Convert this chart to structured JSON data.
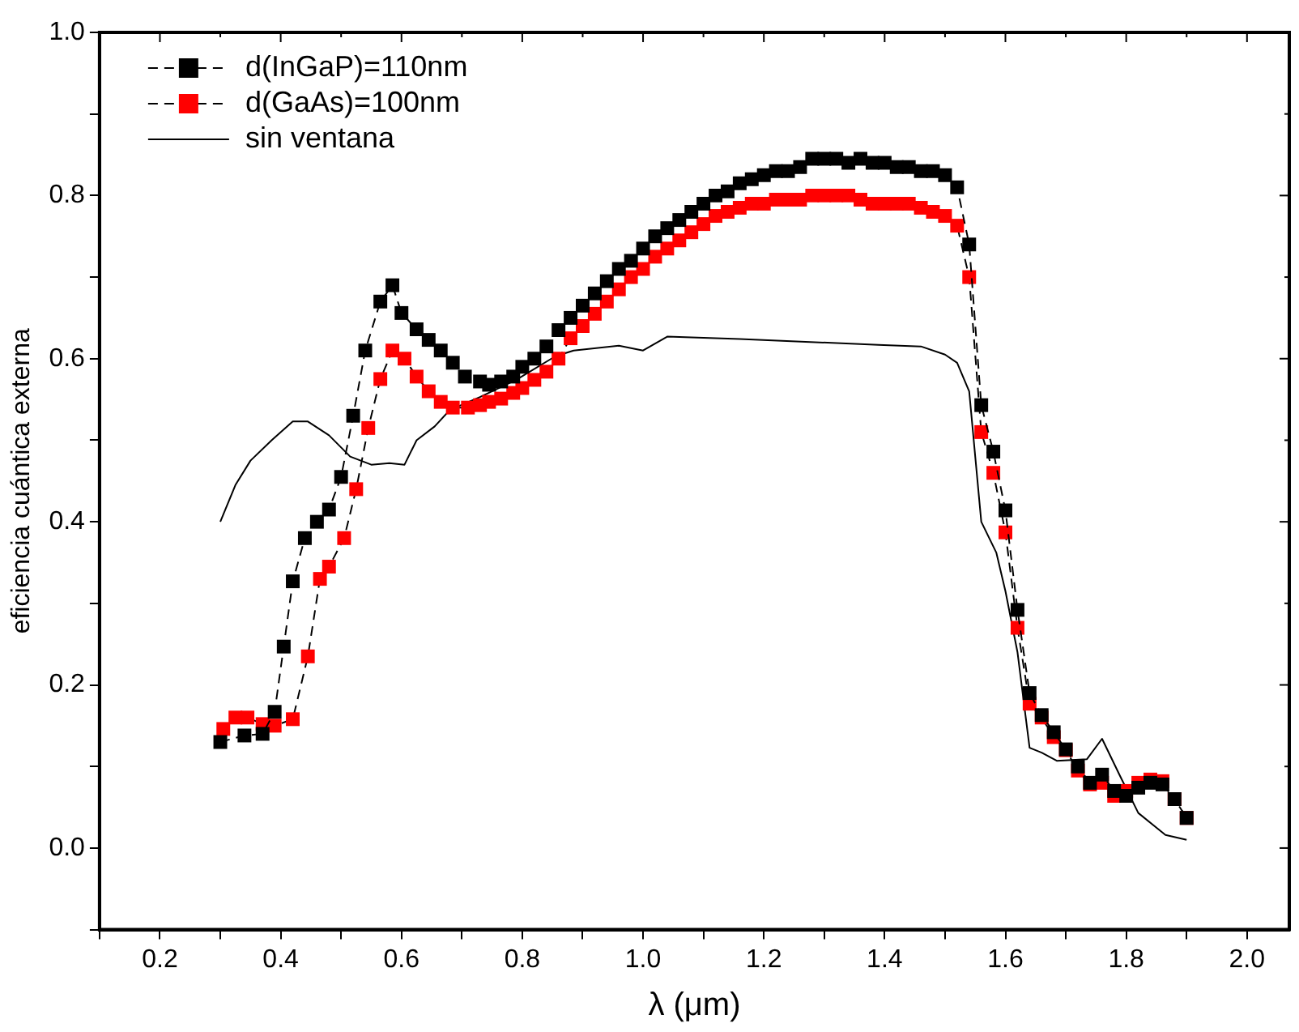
{
  "chart_data": {
    "type": "line",
    "xlabel": "λ (μm)",
    "ylabel": "eficiencia cuántica externa",
    "xlim": [
      0.1,
      2.07
    ],
    "ylim": [
      -0.1,
      1.0
    ],
    "xticks": [
      {
        "value": 0.1,
        "label": null
      },
      {
        "value": 0.2,
        "label": "0.2"
      },
      {
        "value": 0.3,
        "label": null
      },
      {
        "value": 0.4,
        "label": "0.4"
      },
      {
        "value": 0.5,
        "label": null
      },
      {
        "value": 0.6,
        "label": "0.6"
      },
      {
        "value": 0.7,
        "label": null
      },
      {
        "value": 0.8,
        "label": "0.8"
      },
      {
        "value": 0.9,
        "label": null
      },
      {
        "value": 1.0,
        "label": "1.0"
      },
      {
        "value": 1.1,
        "label": null
      },
      {
        "value": 1.2,
        "label": "1.2"
      },
      {
        "value": 1.3,
        "label": null
      },
      {
        "value": 1.4,
        "label": "1.4"
      },
      {
        "value": 1.5,
        "label": null
      },
      {
        "value": 1.6,
        "label": "1.6"
      },
      {
        "value": 1.7,
        "label": null
      },
      {
        "value": 1.8,
        "label": "1.8"
      },
      {
        "value": 1.9,
        "label": null
      },
      {
        "value": 2.0,
        "label": "2.0"
      }
    ],
    "yticks": [
      {
        "value": -0.1,
        "label": null
      },
      {
        "value": 0.0,
        "label": "0.0"
      },
      {
        "value": 0.1,
        "label": null
      },
      {
        "value": 0.2,
        "label": "0.2"
      },
      {
        "value": 0.3,
        "label": null
      },
      {
        "value": 0.4,
        "label": "0.4"
      },
      {
        "value": 0.5,
        "label": null
      },
      {
        "value": 0.6,
        "label": "0.6"
      },
      {
        "value": 0.7,
        "label": null
      },
      {
        "value": 0.8,
        "label": "0.8"
      },
      {
        "value": 0.9,
        "label": null
      },
      {
        "value": 1.0,
        "label": "1.0"
      }
    ],
    "grid": false,
    "legend": "top left",
    "series": [
      {
        "name": "d(InGaP)=110nm",
        "color": "#000000",
        "marker": "square",
        "line_style": "dashed",
        "x": [
          0.3,
          0.34,
          0.37,
          0.39,
          0.405,
          0.42,
          0.44,
          0.46,
          0.48,
          0.5,
          0.52,
          0.54,
          0.565,
          0.585,
          0.6,
          0.625,
          0.645,
          0.665,
          0.685,
          0.705,
          0.73,
          0.745,
          0.765,
          0.785,
          0.8,
          0.82,
          0.84,
          0.86,
          0.88,
          0.9,
          0.92,
          0.94,
          0.96,
          0.98,
          1.0,
          1.02,
          1.04,
          1.06,
          1.08,
          1.1,
          1.12,
          1.14,
          1.16,
          1.18,
          1.2,
          1.22,
          1.24,
          1.26,
          1.28,
          1.3,
          1.32,
          1.34,
          1.36,
          1.38,
          1.4,
          1.42,
          1.44,
          1.46,
          1.48,
          1.5,
          1.52,
          1.54,
          1.56,
          1.58,
          1.6,
          1.62,
          1.64,
          1.66,
          1.68,
          1.7,
          1.72,
          1.74,
          1.76,
          1.78,
          1.8,
          1.82,
          1.84,
          1.86,
          1.88,
          1.9
        ],
        "values": [
          0.13,
          0.138,
          0.14,
          0.167,
          0.247,
          0.327,
          0.38,
          0.4,
          0.415,
          0.455,
          0.53,
          0.61,
          0.67,
          0.69,
          0.656,
          0.636,
          0.623,
          0.61,
          0.595,
          0.578,
          0.572,
          0.568,
          0.572,
          0.578,
          0.59,
          0.6,
          0.615,
          0.635,
          0.65,
          0.665,
          0.68,
          0.695,
          0.71,
          0.72,
          0.735,
          0.75,
          0.76,
          0.77,
          0.78,
          0.79,
          0.8,
          0.805,
          0.815,
          0.82,
          0.825,
          0.83,
          0.83,
          0.835,
          0.845,
          0.845,
          0.845,
          0.84,
          0.845,
          0.84,
          0.84,
          0.835,
          0.835,
          0.83,
          0.83,
          0.825,
          0.81,
          0.74,
          0.543,
          0.486,
          0.414,
          0.292,
          0.19,
          0.163,
          0.142,
          0.121,
          0.1,
          0.08,
          0.09,
          0.07,
          0.064,
          0.074,
          0.08,
          0.078,
          0.06,
          0.037
        ]
      },
      {
        "name": "d(GaAs)=100nm",
        "color": "#ff0000",
        "marker": "square",
        "line_style": "dashed",
        "x": [
          0.305,
          0.325,
          0.345,
          0.37,
          0.39,
          0.42,
          0.445,
          0.465,
          0.48,
          0.505,
          0.525,
          0.545,
          0.565,
          0.585,
          0.605,
          0.625,
          0.645,
          0.665,
          0.685,
          0.71,
          0.73,
          0.745,
          0.765,
          0.785,
          0.8,
          0.82,
          0.84,
          0.86,
          0.88,
          0.9,
          0.92,
          0.94,
          0.96,
          0.98,
          1.0,
          1.02,
          1.04,
          1.06,
          1.08,
          1.1,
          1.12,
          1.14,
          1.16,
          1.18,
          1.2,
          1.22,
          1.24,
          1.26,
          1.28,
          1.3,
          1.32,
          1.34,
          1.36,
          1.38,
          1.4,
          1.42,
          1.44,
          1.46,
          1.48,
          1.5,
          1.52,
          1.54,
          1.56,
          1.58,
          1.6,
          1.62,
          1.64,
          1.66,
          1.68,
          1.7,
          1.72,
          1.74,
          1.76,
          1.78,
          1.8,
          1.82,
          1.84,
          1.86,
          1.88,
          1.9
        ],
        "values": [
          0.146,
          0.16,
          0.16,
          0.152,
          0.15,
          0.158,
          0.235,
          0.33,
          0.345,
          0.38,
          0.44,
          0.515,
          0.575,
          0.61,
          0.6,
          0.578,
          0.56,
          0.547,
          0.54,
          0.54,
          0.543,
          0.547,
          0.551,
          0.558,
          0.564,
          0.574,
          0.584,
          0.6,
          0.625,
          0.64,
          0.655,
          0.67,
          0.685,
          0.7,
          0.71,
          0.725,
          0.735,
          0.745,
          0.755,
          0.765,
          0.775,
          0.78,
          0.785,
          0.79,
          0.79,
          0.795,
          0.795,
          0.795,
          0.8,
          0.8,
          0.8,
          0.8,
          0.795,
          0.79,
          0.79,
          0.79,
          0.79,
          0.785,
          0.78,
          0.775,
          0.763,
          0.7,
          0.51,
          0.46,
          0.387,
          0.27,
          0.177,
          0.16,
          0.136,
          0.12,
          0.095,
          0.078,
          0.08,
          0.064,
          0.07,
          0.08,
          0.084,
          0.082,
          0.06,
          0.037
        ]
      },
      {
        "name": "sin ventana",
        "color": "#000000",
        "marker": "none",
        "line_style": "solid",
        "x": [
          0.3,
          0.325,
          0.35,
          0.385,
          0.42,
          0.445,
          0.48,
          0.515,
          0.55,
          0.58,
          0.605,
          0.625,
          0.655,
          0.68,
          0.73,
          0.79,
          0.855,
          0.885,
          0.96,
          1.0,
          1.04,
          1.16,
          1.39,
          1.46,
          1.5,
          1.52,
          1.54,
          1.56,
          1.585,
          1.6,
          1.62,
          1.64,
          1.66,
          1.685,
          1.735,
          1.76,
          1.79,
          1.82,
          1.865,
          1.9
        ],
        "values": [
          0.4,
          0.445,
          0.475,
          0.5,
          0.523,
          0.523,
          0.506,
          0.48,
          0.47,
          0.472,
          0.47,
          0.5,
          0.517,
          0.537,
          0.553,
          0.574,
          0.603,
          0.61,
          0.616,
          0.61,
          0.627,
          0.624,
          0.617,
          0.615,
          0.605,
          0.595,
          0.56,
          0.4,
          0.362,
          0.315,
          0.24,
          0.123,
          0.117,
          0.107,
          0.109,
          0.134,
          0.088,
          0.043,
          0.016,
          0.01
        ]
      }
    ]
  }
}
